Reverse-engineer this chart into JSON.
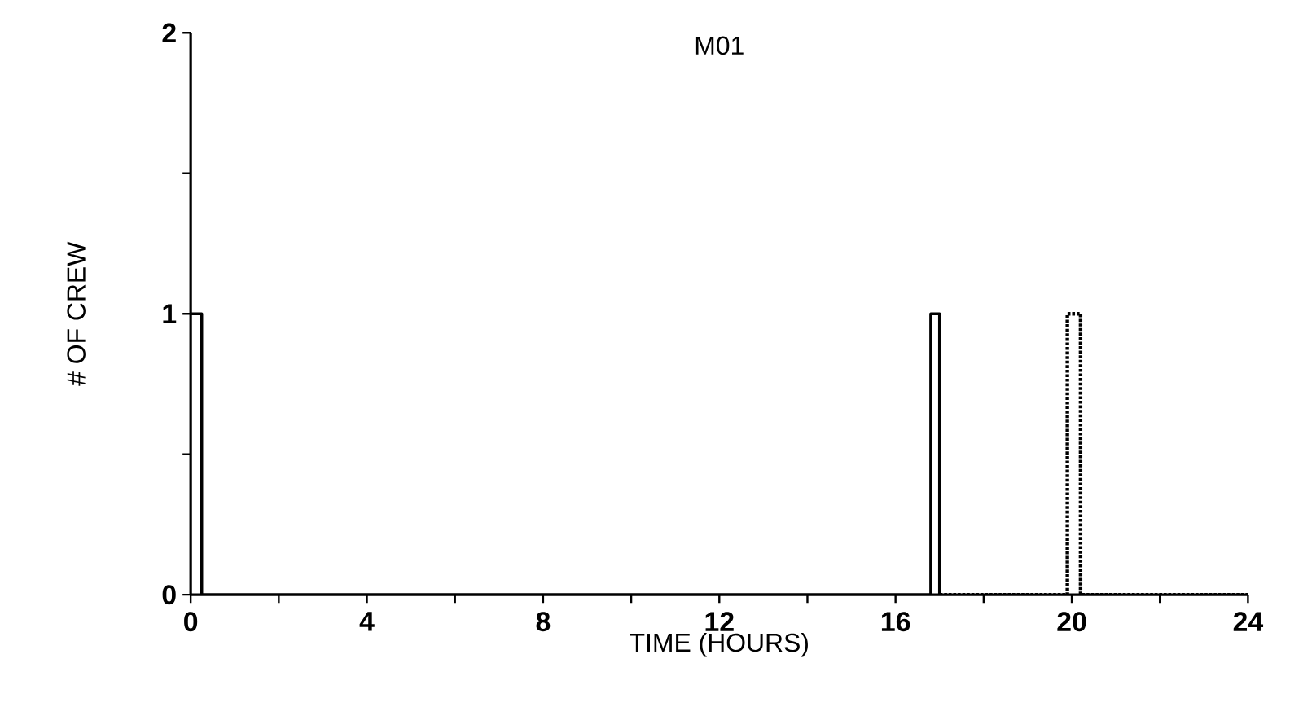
{
  "chart_data": {
    "type": "step",
    "title": "M01",
    "xlabel": "TIME (HOURS)",
    "ylabel": "# OF CREW",
    "xlim": [
      0,
      24
    ],
    "ylim": [
      0,
      2
    ],
    "xticks": [
      0,
      {
        "value": 2,
        "label": null
      },
      4,
      {
        "value": 6,
        "label": null
      },
      8,
      {
        "value": 10,
        "label": null
      },
      12,
      {
        "value": 14,
        "label": null
      },
      16,
      {
        "value": 18,
        "label": null
      },
      20,
      {
        "value": 22,
        "label": null
      },
      24
    ],
    "yticks": [
      0,
      {
        "value": 0.5,
        "label": null
      },
      1,
      {
        "value": 1.5,
        "label": null
      },
      2
    ],
    "grid": false,
    "marker": "none",
    "series": [
      {
        "color": "#000000",
        "line_style": "solid",
        "x": [
          0,
          0.25,
          16.8,
          17.0
        ],
        "values": [
          1,
          0,
          1,
          0
        ]
      },
      {
        "color": "#000000",
        "line_style": "dotted",
        "x": [
          17.0,
          19.9,
          20.2,
          24
        ],
        "values": [
          0,
          1,
          0,
          0
        ]
      }
    ]
  }
}
